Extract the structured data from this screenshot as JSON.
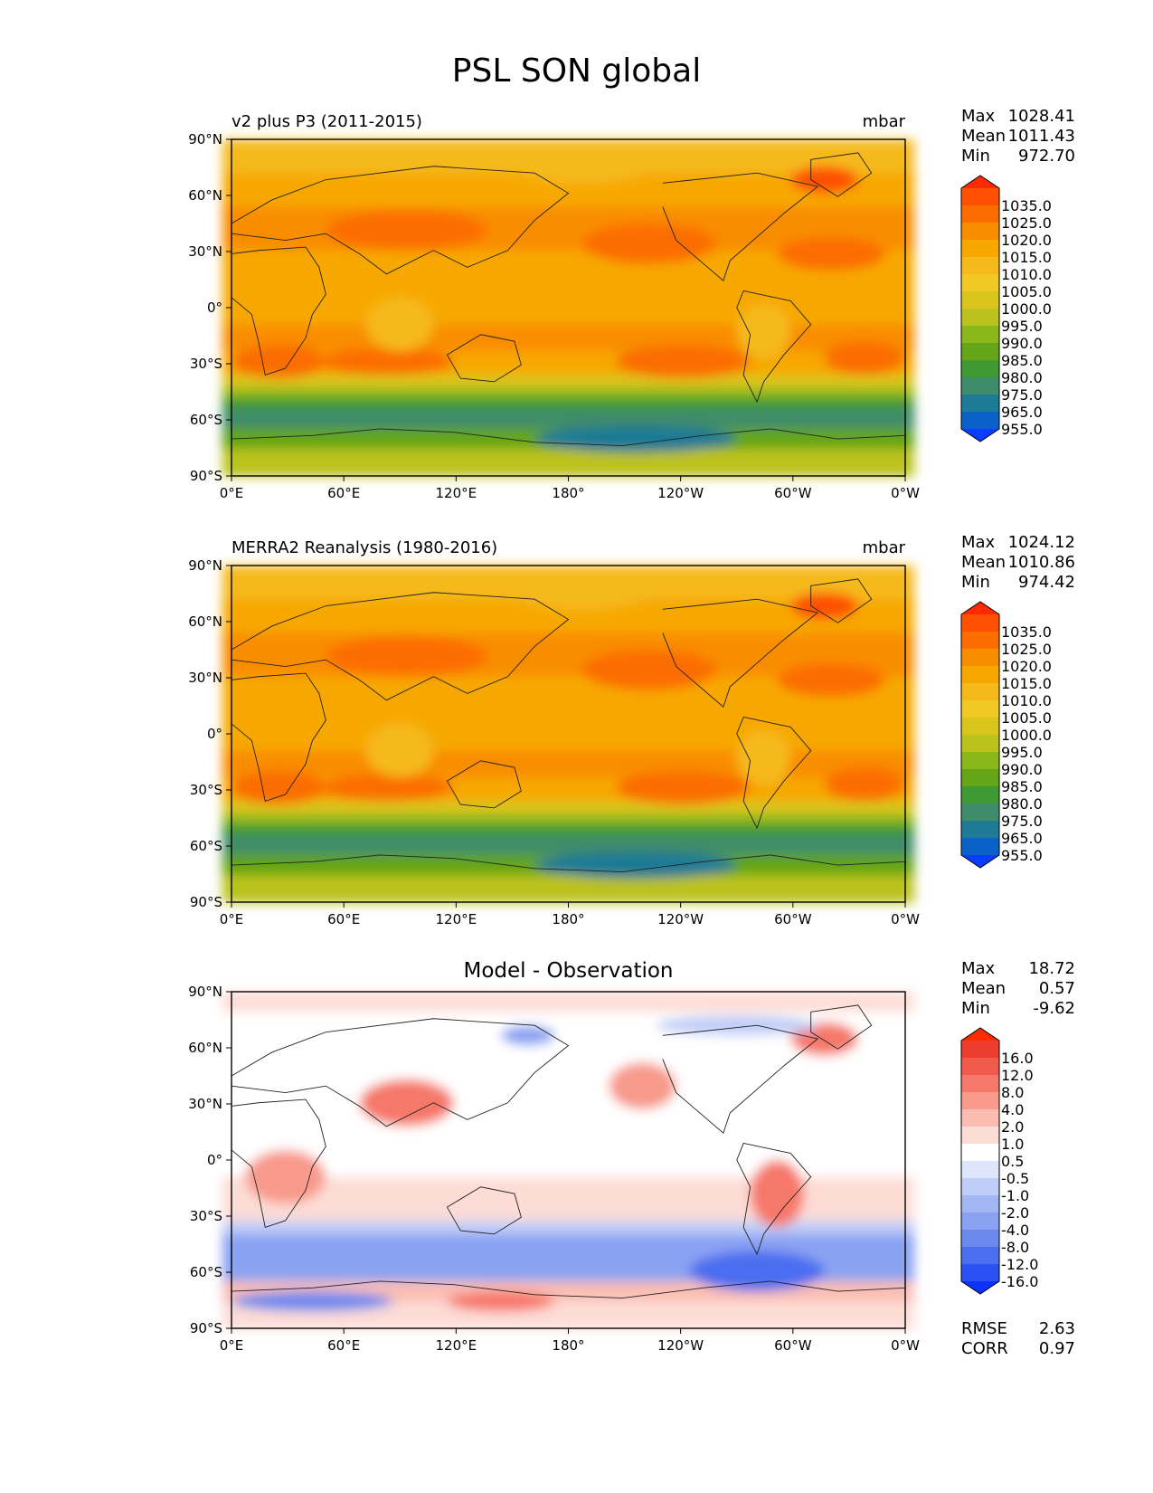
{
  "chart_data": {
    "type": "heatmap",
    "title": "PSL SON global",
    "panels": [
      {
        "label": "v2 plus P3 (2011-2015)",
        "units": "mbar",
        "stats": [
          {
            "name": "Max",
            "value": "1028.41"
          },
          {
            "name": "Mean",
            "value": "1011.43"
          },
          {
            "name": "Min",
            "value": "972.70"
          }
        ],
        "colorbar": {
          "levels": [
            "1035.0",
            "1025.0",
            "1020.0",
            "1015.0",
            "1010.0",
            "1005.0",
            "1000.0",
            "995.0",
            "990.0",
            "985.0",
            "980.0",
            "975.0",
            "965.0",
            "955.0"
          ],
          "colors": [
            "#ff2a00",
            "#ff4f00",
            "#fb6d00",
            "#f98d00",
            "#f7a800",
            "#f5b91a",
            "#f0c925",
            "#d9c51e",
            "#bcc21c",
            "#8ab81a",
            "#64a618",
            "#3f9a33",
            "#3f8c6a",
            "#1e7a95",
            "#0a62c8",
            "#0b3dff"
          ]
        },
        "lat_ticks": [
          "90°N",
          "60°N",
          "30°N",
          "0°",
          "30°S",
          "60°S",
          "90°S"
        ],
        "lon_ticks": [
          "0°E",
          "60°E",
          "120°E",
          "180°",
          "120°W",
          "60°W",
          "0°W"
        ]
      },
      {
        "label": "MERRA2 Reanalysis (1980-2016)",
        "units": "mbar",
        "stats": [
          {
            "name": "Max",
            "value": "1024.12"
          },
          {
            "name": "Mean",
            "value": "1010.86"
          },
          {
            "name": "Min",
            "value": "974.42"
          }
        ],
        "colorbar": {
          "levels": [
            "1035.0",
            "1025.0",
            "1020.0",
            "1015.0",
            "1010.0",
            "1005.0",
            "1000.0",
            "995.0",
            "990.0",
            "985.0",
            "980.0",
            "975.0",
            "965.0",
            "955.0"
          ],
          "colors": [
            "#ff2a00",
            "#ff4f00",
            "#fb6d00",
            "#f98d00",
            "#f7a800",
            "#f5b91a",
            "#f0c925",
            "#d9c51e",
            "#bcc21c",
            "#8ab81a",
            "#64a618",
            "#3f9a33",
            "#3f8c6a",
            "#1e7a95",
            "#0a62c8",
            "#0b3dff"
          ]
        },
        "lat_ticks": [
          "90°N",
          "60°N",
          "30°N",
          "0°",
          "30°S",
          "60°S",
          "90°S"
        ],
        "lon_ticks": [
          "0°E",
          "60°E",
          "120°E",
          "180°",
          "120°W",
          "60°W",
          "0°W"
        ]
      },
      {
        "title": "Model - Observation",
        "stats": [
          {
            "name": "Max",
            "value": "18.72"
          },
          {
            "name": "Mean",
            "value": "0.57"
          },
          {
            "name": "Min",
            "value": "-9.62"
          }
        ],
        "extra_stats": [
          {
            "name": "RMSE",
            "value": "2.63"
          },
          {
            "name": "CORR",
            "value": "0.97"
          }
        ],
        "colorbar": {
          "levels": [
            "16.0",
            "12.0",
            "8.0",
            "4.0",
            "2.0",
            "1.0",
            "0.5",
            "-0.5",
            "-1.0",
            "-2.0",
            "-4.0",
            "-8.0",
            "-12.0",
            "-16.0"
          ],
          "colors": [
            "#ff2a00",
            "#ee3d2f",
            "#f25a4b",
            "#f6786a",
            "#f89a8c",
            "#fbbdb2",
            "#fddcd6",
            "#ffffff",
            "#dfe6fb",
            "#c0cdf8",
            "#a3b6f4",
            "#8aa2f2",
            "#6d89ee",
            "#4c6ef0",
            "#2a52f3",
            "#0b32ff"
          ]
        },
        "lat_ticks": [
          "90°N",
          "60°N",
          "30°N",
          "0°",
          "30°S",
          "60°S",
          "90°S"
        ],
        "lon_ticks": [
          "0°E",
          "60°E",
          "120°E",
          "180°",
          "120°W",
          "60°W",
          "0°W"
        ]
      }
    ],
    "ylim": [
      -90,
      90
    ],
    "xlim": [
      0,
      360
    ]
  }
}
